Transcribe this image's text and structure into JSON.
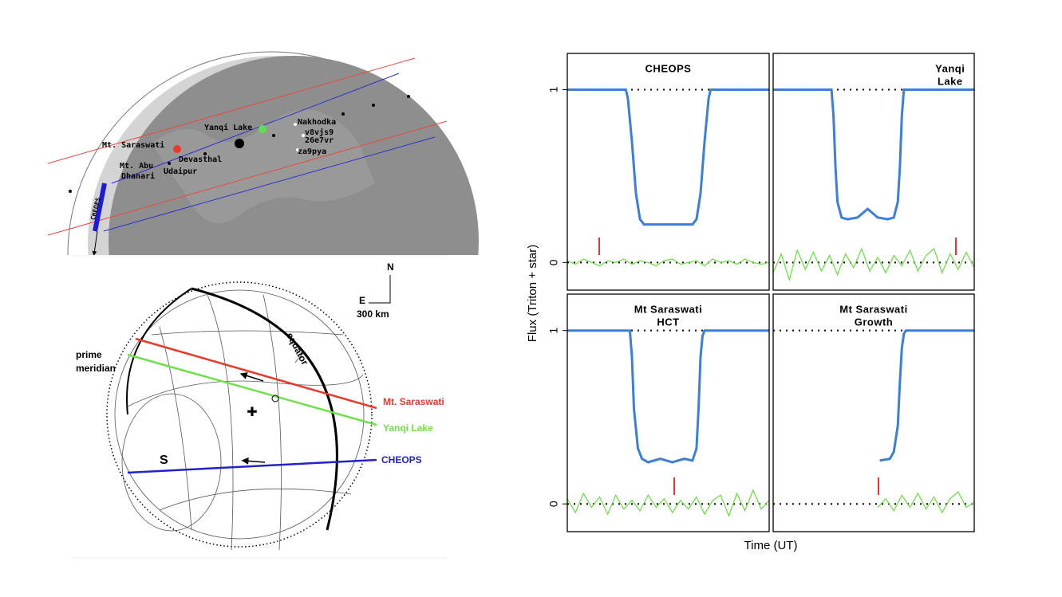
{
  "map": {
    "sites": [
      "Mt. Saraswati",
      "Mt. Abu",
      "Dhanari",
      "Udaipur",
      "Devasthal",
      "Yanqi Lake",
      "Nakhodka",
      "v8vjs9",
      "26e7vr",
      "za9pya"
    ],
    "satellite": "CHEOPS"
  },
  "projection": {
    "prime": "prime",
    "meridian": "meridian",
    "equator": "equator",
    "south": "S",
    "north": "N",
    "east": "E",
    "scale": "300 km",
    "chords": [
      "Mt. Saraswati",
      "Yanqi Lake",
      "CHEOPS"
    ]
  },
  "figure": {
    "ylabel": "Flux (Triton + star)",
    "xlabel": "Time (UT)"
  },
  "chart_data": [
    {
      "type": "line",
      "title": [
        "CHEOPS"
      ],
      "ylim": [
        -0.16,
        1.21
      ],
      "yticks": [
        0,
        1
      ],
      "xlim": [
        0,
        100
      ],
      "series": [
        {
          "color": "#3a7fd8",
          "x": [
            0,
            29,
            30,
            32,
            34,
            36,
            38,
            62,
            64,
            66,
            68,
            70,
            71,
            100
          ],
          "values": [
            1,
            1,
            0.95,
            0.7,
            0.4,
            0.25,
            0.22,
            0.22,
            0.25,
            0.4,
            0.7,
            0.95,
            1,
            1
          ]
        },
        {
          "color": "#6ee04a",
          "x": [
            0,
            4,
            8,
            12,
            16,
            20,
            24,
            28,
            32,
            36,
            40,
            44,
            48,
            52,
            56,
            60,
            64,
            68,
            72,
            76,
            80,
            84,
            88,
            92,
            96,
            100
          ],
          "values": [
            0.01,
            -0.01,
            0.02,
            0,
            -0.02,
            0.01,
            0,
            0.02,
            -0.01,
            0.01,
            0,
            -0.02,
            0.01,
            0.02,
            -0.01,
            0,
            0.01,
            -0.02,
            0.02,
            0,
            0.01,
            -0.01,
            0.02,
            0,
            -0.01,
            0
          ]
        }
      ]
    },
    {
      "type": "line",
      "title": [
        "Yanqi",
        "Lake"
      ],
      "ylim": [
        -0.16,
        1.21
      ],
      "yticks": [
        0,
        1
      ],
      "xlim": [
        0,
        100
      ],
      "series": [
        {
          "color": "#3a7fd8",
          "x": [
            0,
            29,
            30,
            31,
            32,
            34,
            37,
            42,
            47,
            52,
            57,
            60,
            62,
            63,
            64,
            65,
            100
          ],
          "values": [
            1,
            1,
            0.85,
            0.55,
            0.35,
            0.26,
            0.25,
            0.26,
            0.31,
            0.26,
            0.25,
            0.26,
            0.35,
            0.55,
            0.85,
            1,
            1
          ]
        },
        {
          "color": "#6ee04a",
          "x": [
            0,
            4,
            8,
            12,
            16,
            20,
            24,
            28,
            32,
            36,
            40,
            44,
            48,
            52,
            56,
            60,
            64,
            68,
            72,
            76,
            80,
            84,
            88,
            92,
            96,
            100
          ],
          "values": [
            -0.06,
            0.05,
            -0.1,
            0.07,
            -0.04,
            0.06,
            -0.05,
            0.04,
            -0.07,
            0.05,
            -0.03,
            0.08,
            -0.05,
            0.03,
            -0.06,
            0.04,
            -0.02,
            0.07,
            -0.05,
            0.04,
            0.08,
            -0.06,
            0.05,
            -0.04,
            0.06,
            -0.03
          ]
        }
      ]
    },
    {
      "type": "line",
      "title": [
        "Mt Saraswati",
        "HCT"
      ],
      "ylim": [
        -0.16,
        1.21
      ],
      "yticks": [
        0,
        1
      ],
      "xlim": [
        0,
        100
      ],
      "series": [
        {
          "color": "#3a7fd8",
          "x": [
            0,
            31,
            32,
            33,
            35,
            37,
            40,
            46,
            52,
            58,
            62,
            64,
            65,
            66,
            67,
            68,
            100
          ],
          "values": [
            1,
            1,
            0.85,
            0.55,
            0.32,
            0.26,
            0.24,
            0.26,
            0.24,
            0.26,
            0.25,
            0.32,
            0.55,
            0.85,
            0.97,
            1,
            1
          ]
        },
        {
          "color": "#6ee04a",
          "x": [
            0,
            4,
            8,
            12,
            16,
            20,
            24,
            28,
            32,
            36,
            40,
            44,
            48,
            52,
            56,
            60,
            64,
            68,
            72,
            76,
            80,
            84,
            88,
            92,
            96,
            100
          ],
          "values": [
            0.03,
            -0.05,
            0.06,
            -0.02,
            0.04,
            -0.06,
            0.05,
            -0.03,
            0.02,
            -0.04,
            0.05,
            -0.02,
            0.03,
            -0.05,
            0.02,
            -0.03,
            0.04,
            -0.06,
            0.02,
            0.05,
            -0.07,
            0.06,
            -0.04,
            0.08,
            -0.03,
            0.02
          ]
        }
      ]
    },
    {
      "type": "line",
      "title": [
        "Mt Saraswati",
        "Growth"
      ],
      "ylim": [
        -0.16,
        1.21
      ],
      "yticks": [
        0,
        1
      ],
      "xlim": [
        0,
        100
      ],
      "series": [
        {
          "color": "#3a7fd8",
          "x": [
            53,
            58,
            60,
            62,
            63,
            64,
            65,
            66,
            100
          ],
          "values": [
            0.25,
            0.26,
            0.3,
            0.45,
            0.7,
            0.9,
            0.98,
            1,
            1
          ]
        },
        {
          "color": "#6ee04a",
          "x": [
            52,
            56,
            60,
            64,
            68,
            72,
            76,
            80,
            84,
            88,
            92,
            96,
            100
          ],
          "values": [
            -0.02,
            0.03,
            -0.04,
            0.05,
            -0.02,
            0.06,
            -0.03,
            0.04,
            -0.05,
            0.03,
            0.07,
            -0.02,
            0.01
          ]
        }
      ]
    }
  ]
}
